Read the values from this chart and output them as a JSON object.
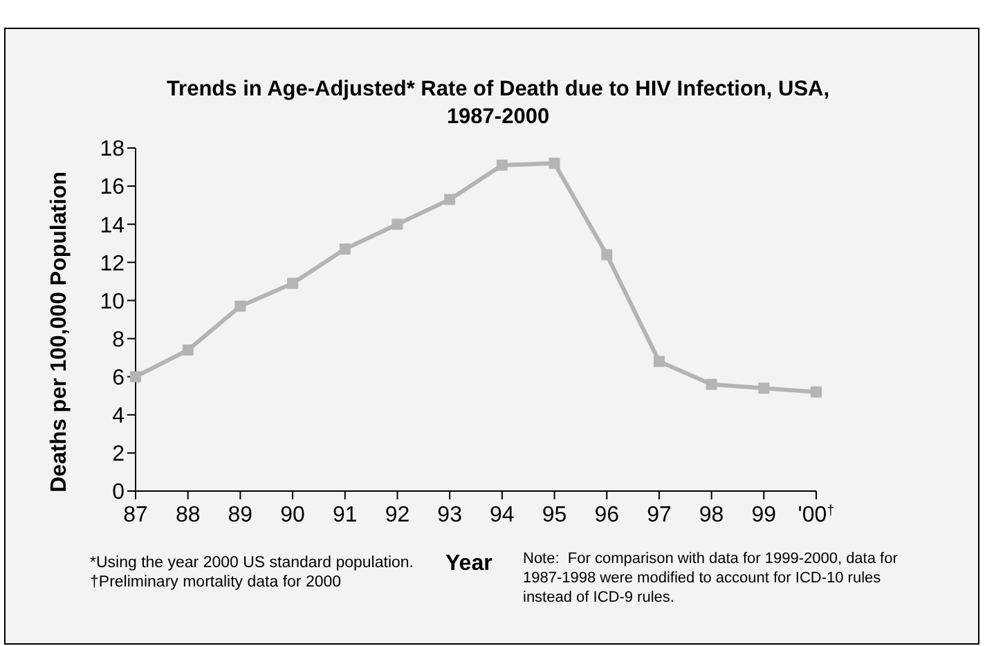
{
  "chart_data": {
    "type": "line",
    "title": "Trends in Age-Adjusted* Rate of Death due to HIV Infection, USA, 1987-2000",
    "xlabel": "Year",
    "ylabel": "Deaths per 100,000 Population",
    "categories": [
      "87",
      "88",
      "89",
      "90",
      "91",
      "92",
      "93",
      "94",
      "95",
      "96",
      "97",
      "98",
      "99",
      "'00$^{†}$"
    ],
    "series": [
      {
        "color": "#b4b4b4",
        "values": [
          6.0,
          7.4,
          9.7,
          10.9,
          12.7,
          14.0,
          15.3,
          17.1,
          17.2,
          12.4,
          6.8,
          5.6,
          5.4,
          5.2
        ]
      }
    ],
    "ylim": [
      0,
      18
    ],
    "yticks": [
      0,
      2,
      4,
      6,
      8,
      10,
      12,
      14,
      16,
      18
    ],
    "grid": false,
    "legend": false,
    "marker": "square",
    "line_style": "solid",
    "annotations": [
      "*Using the year 2000 US standard population.",
      "†Preliminary mortality data for 2000",
      "Note:  For comparison with data for 1999-2000, data for 1987-1998 were modified to account for ICD-10 rules instead of ICD-9 rules."
    ]
  }
}
